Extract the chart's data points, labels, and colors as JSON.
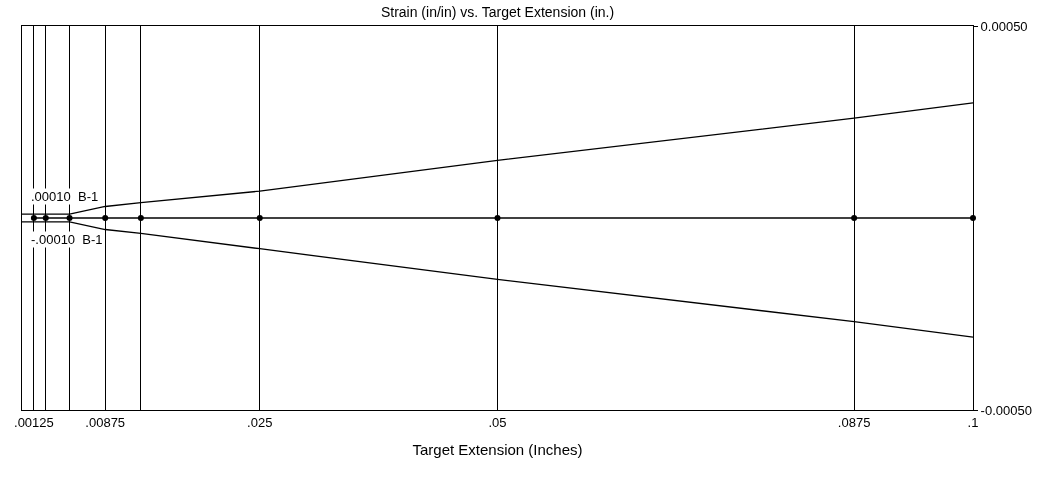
{
  "chart_data": {
    "type": "line",
    "title": "Strain (in/in) vs. Target Extension (in.)",
    "xlabel": "Target Extension (Inches)",
    "xlim": [
      0,
      0.1
    ],
    "ylim": [
      -0.0005,
      0.0005
    ],
    "xticks": [
      {
        "value": 0.00125,
        "label": ".00125"
      },
      {
        "value": 0.0025,
        "label": null
      },
      {
        "value": 0.005,
        "label": null
      },
      {
        "value": 0.00875,
        "label": ".00875"
      },
      {
        "value": 0.0125,
        "label": null
      },
      {
        "value": 0.025,
        "label": ".025"
      },
      {
        "value": 0.05,
        "label": ".05"
      },
      {
        "value": 0.0875,
        "label": ".0875"
      },
      {
        "value": 0.1,
        "label": ".1"
      }
    ],
    "yticks": [
      {
        "value": 0.0005,
        "label": "0.00050"
      },
      {
        "value": -0.0005,
        "label": "-0.00050"
      }
    ],
    "grid": "x",
    "series": [
      {
        "x": [
          0,
          0.005,
          0.00875,
          0.0125,
          0.025,
          0.05,
          0.0875,
          0.1
        ],
        "values": [
          1e-05,
          1e-05,
          3e-05,
          4e-05,
          7e-05,
          0.00015,
          0.00026,
          0.0003
        ],
        "color": "#000000",
        "marker": "none"
      },
      {
        "x": [
          0.00125,
          0.0025,
          0.005,
          0.00875,
          0.0125,
          0.025,
          0.05,
          0.0875,
          0.1
        ],
        "values": [
          0,
          0,
          0,
          0,
          0,
          0,
          0,
          0,
          0
        ],
        "color": "#000000",
        "marker": "circle"
      },
      {
        "x": [
          0,
          0.005,
          0.00875,
          0.0125,
          0.025,
          0.05,
          0.0875,
          0.1
        ],
        "values": [
          -1e-05,
          -1e-05,
          -3e-05,
          -4e-05,
          -8e-05,
          -0.00016,
          -0.00027,
          -0.00031
        ],
        "color": "#000000",
        "marker": "none"
      }
    ],
    "annotations": [
      ".00010  B-1",
      "-.00010  B-1"
    ]
  }
}
